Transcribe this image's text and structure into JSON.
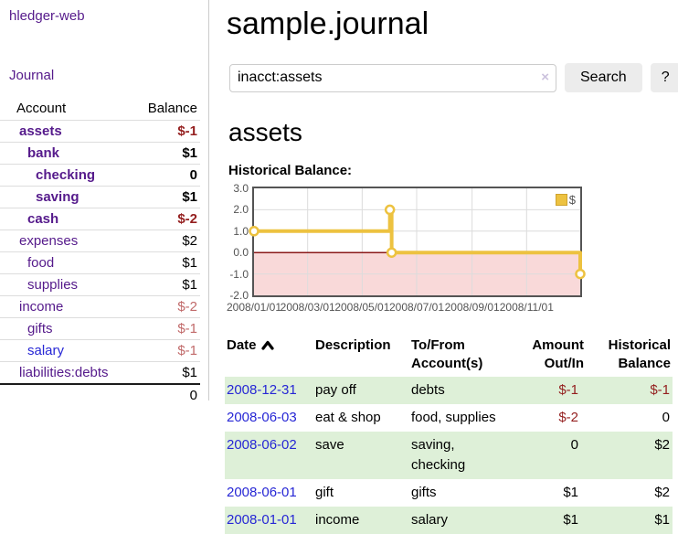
{
  "app": {
    "brand": "hledger-web",
    "nav_journal": "Journal"
  },
  "sidebar": {
    "accounts": {
      "header_account": "Account",
      "header_balance": "Balance",
      "rows": [
        {
          "name": "assets",
          "level": 0,
          "bold": true,
          "link": "visited",
          "balance": "$-1",
          "neg": "strong"
        },
        {
          "name": "bank",
          "level": 1,
          "bold": true,
          "link": "visited",
          "balance": "$1",
          "neg": "none"
        },
        {
          "name": "checking",
          "level": 2,
          "bold": true,
          "link": "visited",
          "balance": "0",
          "neg": "none"
        },
        {
          "name": "saving",
          "level": 2,
          "bold": true,
          "link": "visited",
          "balance": "$1",
          "neg": "none"
        },
        {
          "name": "cash",
          "level": 1,
          "bold": true,
          "link": "visited",
          "balance": "$-2",
          "neg": "strong"
        },
        {
          "name": "expenses",
          "level": 0,
          "bold": false,
          "link": "visited",
          "balance": "$2",
          "neg": "none"
        },
        {
          "name": "food",
          "level": 1,
          "bold": false,
          "link": "visited",
          "balance": "$1",
          "neg": "none"
        },
        {
          "name": "supplies",
          "level": 1,
          "bold": false,
          "link": "visited",
          "balance": "$1",
          "neg": "none"
        },
        {
          "name": "income",
          "level": 0,
          "bold": false,
          "link": "visited",
          "balance": "$-2",
          "neg": "soft"
        },
        {
          "name": "gifts",
          "level": 1,
          "bold": false,
          "link": "visited",
          "balance": "$-1",
          "neg": "soft"
        },
        {
          "name": "salary",
          "level": 1,
          "bold": false,
          "link": "unvisited",
          "balance": "$-1",
          "neg": "soft"
        },
        {
          "name": "liabilities:debts",
          "level": 0,
          "bold": false,
          "link": "visited",
          "balance": "$1",
          "neg": "none"
        }
      ],
      "total": "0"
    }
  },
  "main": {
    "title": "sample.journal",
    "search": {
      "value": "inacct:assets",
      "clear_icon": "×",
      "button_label": "Search",
      "help_label": "?"
    },
    "account_heading": "assets"
  },
  "chart_data": {
    "type": "line",
    "title": "Historical Balance:",
    "step": true,
    "grid": true,
    "legend_position": "top-right",
    "x_range": [
      "2008-01-01",
      "2008-12-31"
    ],
    "ylim": [
      -2,
      3
    ],
    "series": [
      {
        "name": "$",
        "color": "#edc240",
        "points": [
          [
            "2008-01-01",
            1
          ],
          [
            "2008-06-01",
            2
          ],
          [
            "2008-06-03",
            0
          ],
          [
            "2008-12-31",
            -1
          ]
        ]
      }
    ],
    "yticks": [
      {
        "label": "3.0",
        "value": 3
      },
      {
        "label": "2.0",
        "value": 2
      },
      {
        "label": "1.0",
        "value": 1
      },
      {
        "label": "0.0",
        "value": 0
      },
      {
        "label": "-1.0",
        "value": -1
      },
      {
        "label": "-2.0",
        "value": -2
      }
    ],
    "xticks": [
      {
        "label": "2008/01/01",
        "date": "2008-01-01"
      },
      {
        "label": "2008/03/01",
        "date": "2008-03-01"
      },
      {
        "label": "2008/05/01",
        "date": "2008-05-01"
      },
      {
        "label": "2008/07/01",
        "date": "2008-07-01"
      },
      {
        "label": "2008/09/01",
        "date": "2008-09-01"
      },
      {
        "label": "2008/11/01",
        "date": "2008-11-01"
      }
    ],
    "negative_region_color": "#f9d9d9",
    "zero_line_color": "#8b1a1a",
    "gridline_color": "#dcdcdc"
  },
  "register": {
    "headers": [
      {
        "key": "date",
        "lines": [
          "Date"
        ],
        "align": "left",
        "sortable": true,
        "sort": "asc"
      },
      {
        "key": "description",
        "lines": [
          "Description"
        ],
        "align": "left",
        "sortable": false
      },
      {
        "key": "accounts",
        "lines": [
          "To/From",
          "Account(s)"
        ],
        "align": "left",
        "sortable": false
      },
      {
        "key": "amount",
        "lines": [
          "Amount",
          "Out/In"
        ],
        "align": "right",
        "sortable": false
      },
      {
        "key": "balance",
        "lines": [
          "Historical",
          "Balance"
        ],
        "align": "right",
        "sortable": false
      }
    ],
    "rows": [
      {
        "date": "2008-12-31",
        "description": "pay off",
        "accounts": "debts",
        "amount": "$-1",
        "amount_neg": true,
        "balance": "$-1",
        "balance_neg": true
      },
      {
        "date": "2008-06-03",
        "description": "eat & shop",
        "accounts": "food, supplies",
        "amount": "$-2",
        "amount_neg": true,
        "balance": "0",
        "balance_neg": false
      },
      {
        "date": "2008-06-02",
        "description": "save",
        "accounts": "saving, checking",
        "amount": "0",
        "amount_neg": false,
        "balance": "$2",
        "balance_neg": false
      },
      {
        "date": "2008-06-01",
        "description": "gift",
        "accounts": "gifts",
        "amount": "$1",
        "amount_neg": false,
        "balance": "$2",
        "balance_neg": false
      },
      {
        "date": "2008-01-01",
        "description": "income",
        "accounts": "salary",
        "amount": "$1",
        "amount_neg": false,
        "balance": "$1",
        "balance_neg": false
      }
    ]
  }
}
